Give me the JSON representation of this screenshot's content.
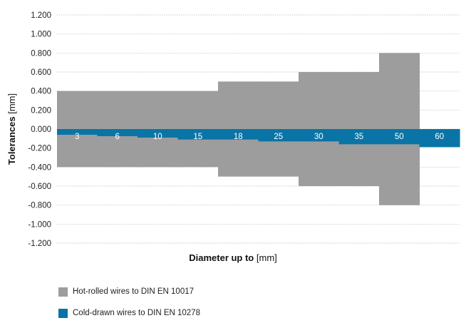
{
  "chart_data": {
    "type": "bar",
    "xlabel_bold": "Diameter up to",
    "xlabel_unit": "[mm]",
    "ylabel_bold": "Tolerances",
    "ylabel_unit": "[mm]",
    "ylim": [
      -1.2,
      1.2
    ],
    "yticks": [
      "1.200",
      "1.000",
      "0.800",
      "0.600",
      "0.400",
      "0.200",
      "0.000",
      "-0.200",
      "-0.400",
      "-0.600",
      "-0.800",
      "-1.000",
      "-1.200"
    ],
    "ytick_values": [
      1.2,
      1.0,
      0.8,
      0.6,
      0.4,
      0.2,
      0.0,
      -0.2,
      -0.4,
      -0.6,
      -0.8,
      -1.0,
      -1.2
    ],
    "categories": [
      "3",
      "6",
      "10",
      "15",
      "18",
      "25",
      "30",
      "35",
      "50",
      "60"
    ],
    "grid": true,
    "legend_position": "bottom-left",
    "series": [
      {
        "name": "Hot-rolled wires to DIN EN 10017",
        "color": "#9d9d9d",
        "upper": [
          0.4,
          0.4,
          0.4,
          0.4,
          0.5,
          0.5,
          0.6,
          0.6,
          0.8,
          null
        ],
        "lower": [
          -0.4,
          -0.4,
          -0.4,
          -0.4,
          -0.5,
          -0.5,
          -0.6,
          -0.6,
          -0.8,
          null
        ]
      },
      {
        "name": "Cold-drawn wires to DIN EN 10278",
        "color": "#0a74a6",
        "upper": [
          0,
          0,
          0,
          0,
          0,
          0,
          0,
          0,
          0,
          0
        ],
        "lower": [
          -0.06,
          -0.075,
          -0.09,
          -0.11,
          -0.11,
          -0.13,
          -0.13,
          -0.16,
          -0.16,
          -0.19
        ]
      }
    ]
  }
}
